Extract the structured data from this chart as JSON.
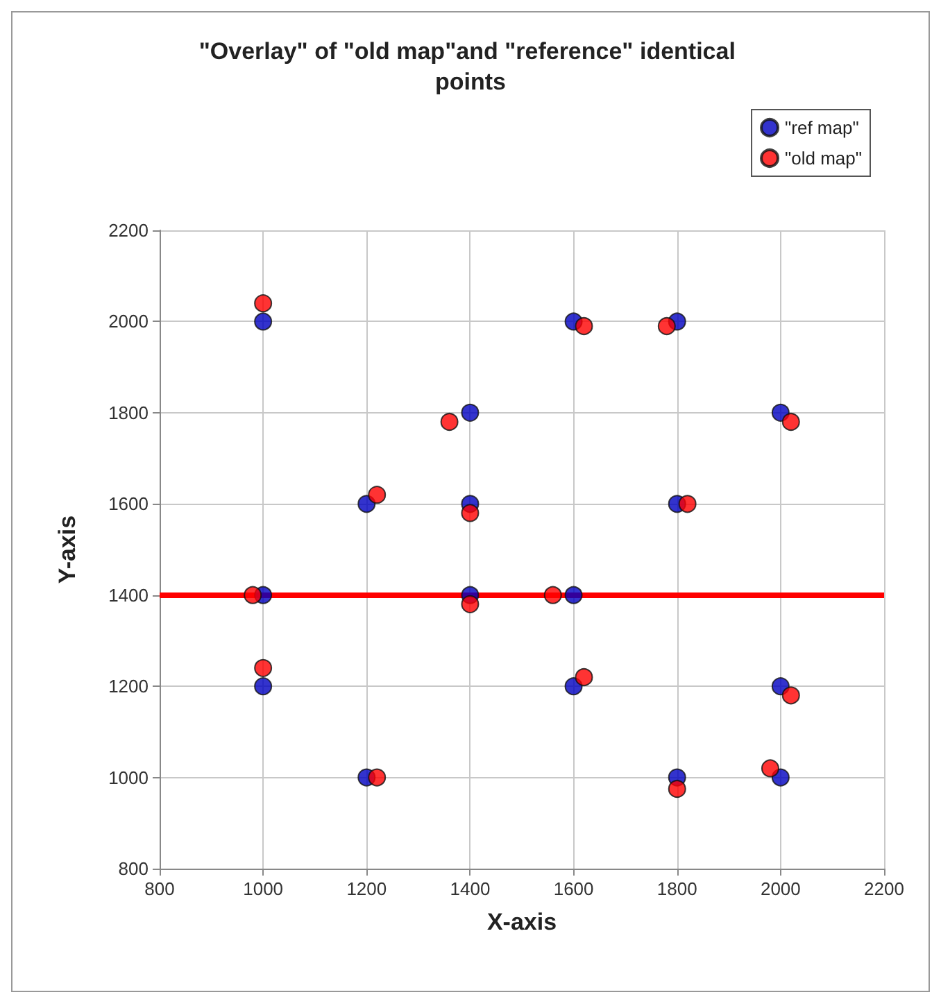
{
  "chart_data": {
    "type": "scatter",
    "title": "\"Overlay\" of \"old map\"and \"reference\" identical points",
    "xlabel": "X-axis",
    "ylabel": "Y-axis",
    "xlim": [
      800,
      2200
    ],
    "xticks": [
      800,
      1000,
      1200,
      1400,
      1600,
      1800,
      2000,
      2200
    ],
    "ylim": [
      800,
      2200
    ],
    "yticks": [
      800,
      1000,
      1200,
      1400,
      1600,
      1800,
      2000,
      2200
    ],
    "grid": true,
    "legend": "top right",
    "marker": "circle",
    "ref_lines": [
      {
        "axis": "y",
        "value": 1400,
        "color": "#ff0000"
      }
    ],
    "series": [
      {
        "name": "\"ref map\"",
        "color": "#0000c0",
        "x": [
          1000,
          1600,
          1800,
          1400,
          2000,
          1200,
          1400,
          1800,
          1000,
          1400,
          1600,
          1000,
          1600,
          2000,
          1200,
          1800,
          2000
        ],
        "values": [
          2000,
          2000,
          2000,
          1800,
          1800,
          1600,
          1600,
          1600,
          1400,
          1400,
          1400,
          1200,
          1200,
          1200,
          1000,
          1000,
          1000
        ]
      },
      {
        "name": "\"old map\"",
        "color": "#ff0000",
        "x": [
          1000,
          1620,
          1780,
          1360,
          2020,
          1220,
          1400,
          1820,
          980,
          1400,
          1560,
          1000,
          1620,
          2020,
          1220,
          1800,
          1980
        ],
        "values": [
          2040,
          1990,
          1990,
          1780,
          1780,
          1620,
          1580,
          1600,
          1400,
          1380,
          1400,
          1240,
          1220,
          1180,
          1000,
          975,
          1020
        ]
      }
    ]
  }
}
